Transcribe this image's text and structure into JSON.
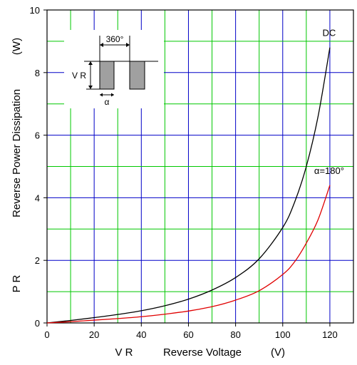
{
  "chart_data": {
    "type": "line",
    "ylabel_symbol": "P R",
    "ylabel_text": "Reverse Power Dissipation",
    "ylabel_unit": "(W)",
    "xlabel_symbol": "V R",
    "xlabel_text": "Reverse Voltage",
    "xlabel_unit": "(V)",
    "xlim": [
      0,
      130
    ],
    "ylim": [
      0,
      10
    ],
    "x_ticks": [
      0,
      20,
      40,
      60,
      80,
      100,
      120
    ],
    "y_ticks": [
      0,
      2,
      4,
      6,
      8,
      10
    ],
    "grid": true,
    "grid_colors": {
      "major": "#0000c8",
      "minor": "#00c800"
    },
    "series": [
      {
        "name": "DC",
        "color": "#000000",
        "x": [
          0,
          10,
          20,
          30,
          40,
          50,
          60,
          70,
          80,
          90,
          100,
          105,
          110,
          115,
          120
        ],
        "y": [
          0,
          0.08,
          0.17,
          0.27,
          0.39,
          0.55,
          0.76,
          1.05,
          1.45,
          2.05,
          3.05,
          3.85,
          5.0,
          6.6,
          8.8
        ]
      },
      {
        "name": "α=180°",
        "color": "#e00000",
        "x": [
          0,
          10,
          20,
          30,
          40,
          50,
          60,
          70,
          80,
          90,
          100,
          105,
          110,
          115,
          120
        ],
        "y": [
          0,
          0.04,
          0.09,
          0.14,
          0.2,
          0.28,
          0.38,
          0.52,
          0.73,
          1.03,
          1.55,
          1.95,
          2.55,
          3.3,
          4.4
        ]
      }
    ],
    "inset": {
      "period_label": "360°",
      "amplitude_label": "V R",
      "pulse_label": "α"
    }
  }
}
